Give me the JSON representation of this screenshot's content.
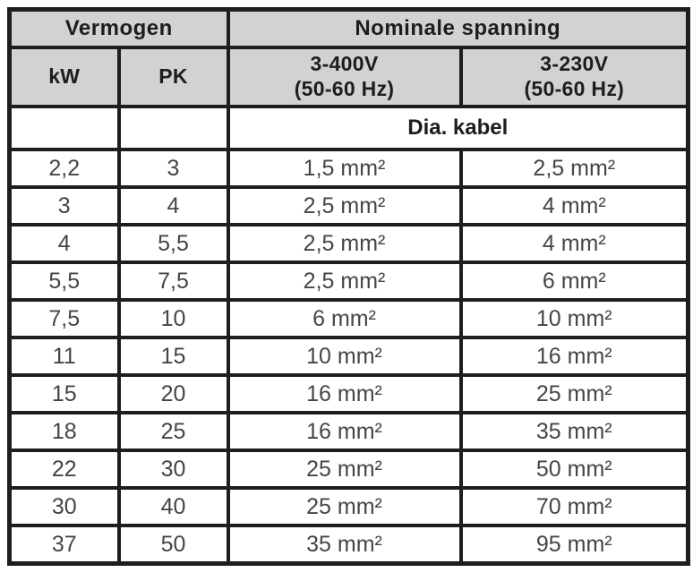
{
  "table": {
    "header_groups": {
      "power": "Vermogen",
      "voltage": "Nominale spanning"
    },
    "columns": [
      {
        "label": "kW"
      },
      {
        "label": "PK"
      },
      {
        "label": "3-400V",
        "sublabel": "(50-60 Hz)"
      },
      {
        "label": "3-230V",
        "sublabel": "(50-60 Hz)"
      }
    ],
    "subheader": "Dia. kabel",
    "rows": [
      [
        "2,2",
        "3",
        "1,5 mm²",
        "2,5 mm²"
      ],
      [
        "3",
        "4",
        "2,5 mm²",
        "4 mm²"
      ],
      [
        "4",
        "5,5",
        "2,5 mm²",
        "4 mm²"
      ],
      [
        "5,5",
        "7,5",
        "2,5 mm²",
        "6 mm²"
      ],
      [
        "7,5",
        "10",
        "6 mm²",
        "10 mm²"
      ],
      [
        "11",
        "15",
        "10 mm²",
        "16 mm²"
      ],
      [
        "15",
        "20",
        "16 mm²",
        "25 mm²"
      ],
      [
        "18",
        "25",
        "16 mm²",
        "35 mm²"
      ],
      [
        "22",
        "30",
        "25 mm²",
        "50 mm²"
      ],
      [
        "30",
        "40",
        "25 mm²",
        "70 mm²"
      ],
      [
        "37",
        "50",
        "35 mm²",
        "95 mm²"
      ]
    ]
  },
  "colors": {
    "header_background": "#d2d2d2",
    "border": "#1e1e1c",
    "header_text": "#1d1d1b",
    "data_text": "#454544",
    "page_background": "#ffffff"
  }
}
